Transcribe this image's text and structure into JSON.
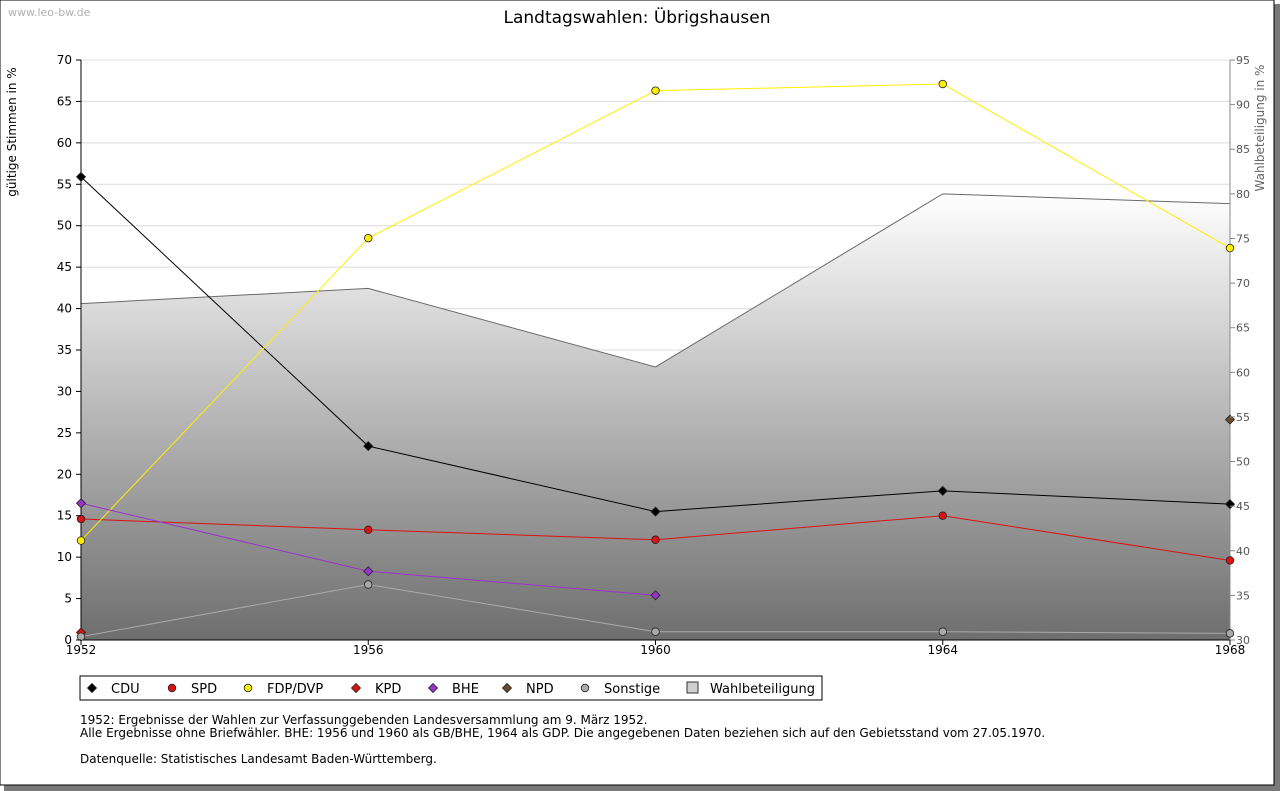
{
  "watermark": "www.leo-bw.de",
  "chart_data": {
    "type": "line",
    "title": "Landtagswahlen: Übrigshausen",
    "ylabel": "gültige Stimmen in %",
    "y2label": "Wahlbeteiligung in %",
    "ylim": [
      0,
      70
    ],
    "y2lim": [
      30,
      95
    ],
    "yticks": [
      "0",
      "5",
      "10",
      "15",
      "20",
      "25",
      "30",
      "35",
      "40",
      "45",
      "50",
      "55",
      "60",
      "65",
      "70"
    ],
    "y2ticks": [
      "30",
      "35",
      "40",
      "45",
      "50",
      "55",
      "60",
      "65",
      "70",
      "75",
      "80",
      "85",
      "90",
      "95"
    ],
    "x": [
      "1952",
      "1956",
      "1960",
      "1964",
      "1968"
    ],
    "grid": true,
    "legend_position": "bottom",
    "series": [
      {
        "name": "CDU",
        "color": "#000000",
        "marker": "diamond",
        "values": [
          55.9,
          23.4,
          15.5,
          18.0,
          16.4
        ]
      },
      {
        "name": "SPD",
        "color": "#dd1111",
        "marker": "circle",
        "values": [
          14.6,
          13.3,
          12.1,
          15.0,
          9.6
        ]
      },
      {
        "name": "FDP/DVP",
        "color": "#ffee00",
        "marker": "circle",
        "values": [
          12.0,
          48.5,
          66.3,
          67.1,
          47.3
        ]
      },
      {
        "name": "KPD",
        "color": "#dd1111",
        "marker": "diamond",
        "values": [
          0.9,
          null,
          null,
          null,
          null
        ]
      },
      {
        "name": "BHE",
        "color": "#9933cc",
        "marker": "diamond",
        "values": [
          16.5,
          8.3,
          5.4,
          null,
          null
        ]
      },
      {
        "name": "NPD",
        "color": "#6b4a2a",
        "marker": "diamond",
        "values": [
          null,
          null,
          null,
          null,
          26.6
        ]
      },
      {
        "name": "Sonstige",
        "color": "#aaaaaa",
        "marker": "circle",
        "values": [
          0.4,
          6.7,
          1.0,
          1.0,
          0.8
        ]
      }
    ],
    "turnout": {
      "name": "Wahlbeteiligung",
      "axis": "right",
      "values": [
        67.7,
        69.4,
        60.6,
        80.0,
        78.9
      ]
    }
  },
  "notes": {
    "line1": "1952: Ergebnisse der Wahlen zur Verfassunggebenden Landesversammlung am 9. März 1952.",
    "line2": "Alle Ergebnisse ohne Briefwähler. BHE: 1956 und 1960 als GB/BHE, 1964 als GDP. Die angegebenen Daten beziehen sich auf den Gebietsstand vom 27.05.1970.",
    "source": "Datenquelle: Statistisches Landesamt Baden-Württemberg."
  }
}
